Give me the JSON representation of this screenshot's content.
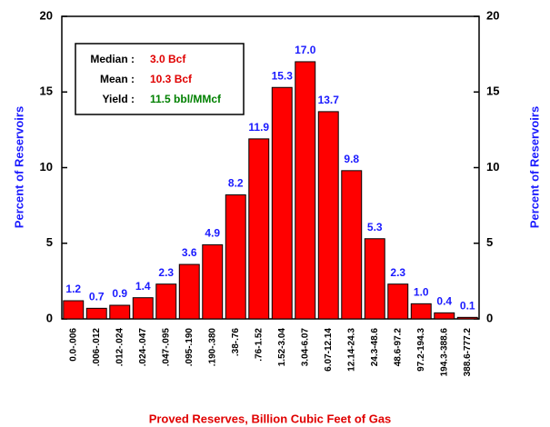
{
  "chart_data": {
    "type": "bar",
    "categories": [
      "0.0-.006",
      ".006-.012",
      ".012-.024",
      ".024-.047",
      ".047-.095",
      ".095-.190",
      ".190-.380",
      ".38-.76",
      ".76-1.52",
      "1.52-3.04",
      "3.04-6.07",
      "6.07-12.14",
      "12.14-24.3",
      "24.3-48.6",
      "48.6-97.2",
      "97.2-194.3",
      "194.3-388.6",
      "388.6-777.2"
    ],
    "values": [
      1.2,
      0.7,
      0.9,
      1.4,
      2.3,
      3.6,
      4.9,
      8.2,
      11.9,
      15.3,
      17.0,
      13.7,
      9.8,
      5.3,
      2.3,
      1.0,
      0.4,
      0.1
    ],
    "value_labels": [
      "1.2",
      "0.7",
      "0.9",
      "1.4",
      "2.3",
      "3.6",
      "4.9",
      "8.2",
      "11.9",
      "15.3",
      "17.0",
      "13.7",
      "9.8",
      "5.3",
      "2.3",
      "1.0",
      "0.4",
      "0.1"
    ],
    "color": "#ff0000",
    "x_label": "Proved Reserves, Billion Cubic Feet of Gas",
    "y_label": "Percent of Reservoirs",
    "y2_label": "Percent of Reservoirs",
    "ylim": [
      0,
      20
    ],
    "yticks": [
      0,
      5,
      10,
      15,
      20
    ],
    "y2lim": [
      0,
      20
    ],
    "y2ticks": [
      0,
      5,
      10,
      15,
      20
    ],
    "stats": [
      {
        "label": "Median :",
        "value": "3.0 Bcf",
        "color": "#e00000"
      },
      {
        "label": "Mean :",
        "value": "10.3 Bcf",
        "color": "#e00000"
      },
      {
        "label": "Yield :",
        "value": "11.5 bbl/MMcf",
        "color": "#008000"
      }
    ]
  }
}
